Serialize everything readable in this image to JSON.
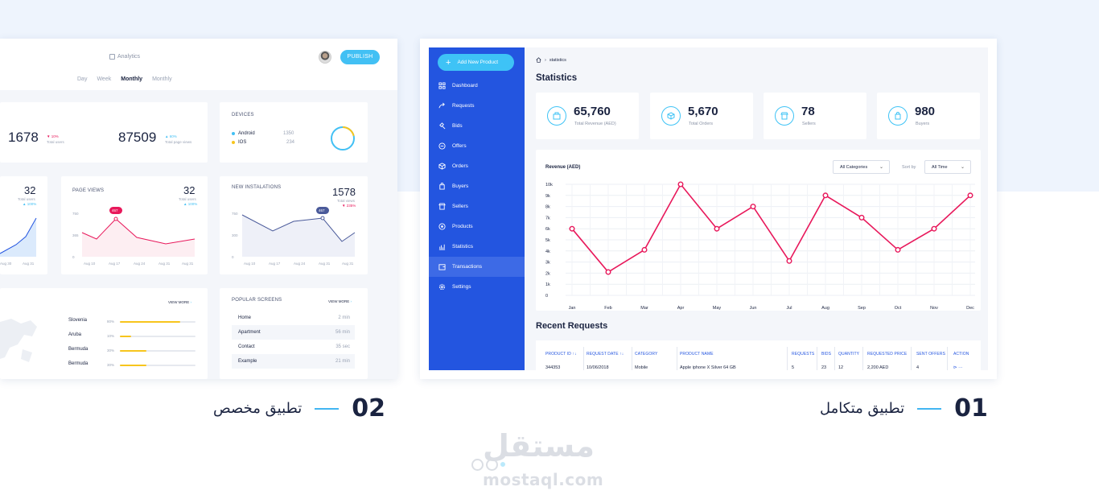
{
  "card2": {
    "analytics_label": "Analytics",
    "publish_label": "PUBLISH",
    "periods": [
      "Day",
      "Week",
      "Monthly",
      "Monthly"
    ],
    "active_period": "Monthly",
    "stats": {
      "users": {
        "value": "1678",
        "change": "▼ 10%",
        "label": "Total users"
      },
      "pageviews": {
        "value": "87509",
        "change": "▲ 60%",
        "label": "Total page views"
      }
    },
    "devices": {
      "title": "DEVICES",
      "items": [
        {
          "name": "Android",
          "value": "1350",
          "color": "#42c0f4"
        },
        {
          "name": "IOS",
          "value": "234",
          "color": "#f7c51d"
        }
      ]
    },
    "small_panel": {
      "value": "32",
      "label": "Total users",
      "change": "▲ 100%",
      "ticks": [
        "Aug 30",
        "Aug 31"
      ]
    },
    "page_views": {
      "title": "PAGE VIEWS",
      "value": "32",
      "label": "Total users",
      "change": "▲ 100%",
      "badge": "467",
      "y_ticks": [
        "750",
        "365",
        "0"
      ],
      "x_ticks": [
        "Aug 10",
        "Aug 17",
        "Aug 24",
        "Aug 31",
        "Aug 31"
      ]
    },
    "installations": {
      "title": "NEW INSTALATIONS",
      "value": "1578",
      "label": "Total views",
      "change": "▼ 235%",
      "badge": "467",
      "y_ticks": [
        "750",
        "300",
        "0"
      ],
      "x_ticks": [
        "Aug 10",
        "Aug 17",
        "Aug 24",
        "Aug 31",
        "Aug 31"
      ]
    },
    "countries": {
      "view_more": "VIEW MORE",
      "items": [
        {
          "name": "Slovenia",
          "pct": "80%",
          "fill": 0.8
        },
        {
          "name": "Aruba",
          "pct": "10%",
          "fill": 0.15
        },
        {
          "name": "Bermuda",
          "pct": "30%",
          "fill": 0.35
        },
        {
          "name": "Bermuda",
          "pct": "30%",
          "fill": 0.35
        }
      ]
    },
    "popular": {
      "title": "POPULAR SCREENS",
      "view_more": "VIEW MORE",
      "items": [
        {
          "name": "Home",
          "time": "2 min"
        },
        {
          "name": "Apartment",
          "time": "56 min"
        },
        {
          "name": "Contact",
          "time": "35 sec"
        },
        {
          "name": "Example",
          "time": "21 min"
        }
      ]
    }
  },
  "card1": {
    "add_button": "Add New Product",
    "nav": [
      {
        "label": "Dashboard",
        "icon": "grid-icon"
      },
      {
        "label": "Requests",
        "icon": "share-icon"
      },
      {
        "label": "Bids",
        "icon": "gavel-icon"
      },
      {
        "label": "Offers",
        "icon": "tag-icon"
      },
      {
        "label": "Orders",
        "icon": "box-icon"
      },
      {
        "label": "Buyers",
        "icon": "bag-icon"
      },
      {
        "label": "Sellers",
        "icon": "store-icon"
      },
      {
        "label": "Products",
        "icon": "products-icon"
      },
      {
        "label": "Statistics",
        "icon": "bar-chart-icon"
      },
      {
        "label": "Transactions",
        "icon": "wallet-icon"
      },
      {
        "label": "Settings",
        "icon": "gear-icon"
      }
    ],
    "active_nav": "Transactions",
    "breadcrumb": "statistics",
    "page_title": "Statistics",
    "kpis": [
      {
        "value": "65,760",
        "label": "Total Revenue (AED)",
        "icon": "money-icon"
      },
      {
        "value": "5,670",
        "label": "Total Orders",
        "icon": "box-icon"
      },
      {
        "value": "78",
        "label": "Sellers",
        "icon": "store-icon"
      },
      {
        "value": "980",
        "label": "Buyers",
        "icon": "bag-icon"
      }
    ],
    "filter_category": "All Categories",
    "sort_by_label": "Sort by",
    "sort_value": "All Time",
    "recent_title": "Recent Requests",
    "table": {
      "headers": [
        "PRODUCT ID ↑↓",
        "REQUEST DATE ↑↓",
        "CATEGORY",
        "PRODUCT NAME",
        "REQUESTS",
        "BIDS",
        "QUANTITY",
        "REQUESTED PRICE",
        "SENT OFFERS",
        "ACTION"
      ],
      "row": [
        "344353",
        "10/06/2018",
        "Mobile",
        "Apple iphone X Silver 64 GB",
        "5",
        "23",
        "12",
        "2,200 AED",
        "4",
        "⊳ ···"
      ]
    }
  },
  "chart_data": {
    "type": "line",
    "title": "Revenue (AED)",
    "categories": [
      "Jan",
      "Feb",
      "Mar",
      "Apr",
      "May",
      "Jun",
      "Jul",
      "Aug",
      "Sep",
      "Oct",
      "Nov",
      "Dec"
    ],
    "values": [
      6000,
      2100,
      4100,
      10000,
      6000,
      8000,
      3100,
      9000,
      7000,
      4100,
      6000,
      9000
    ],
    "y_ticks": [
      "10k",
      "9k",
      "8k",
      "7k",
      "6k",
      "5k",
      "4k",
      "3k",
      "2k",
      "1k",
      "0"
    ],
    "ylim": [
      0,
      10000
    ],
    "line_color": "#e8185b",
    "grid": true
  },
  "captions": {
    "one_num": "01",
    "one_text": "تطبيق متكامل",
    "two_num": "02",
    "two_text": "تطبيق مخصص"
  },
  "watermark": {
    "arabic": "مستقل",
    "latin": "mostaql.com"
  }
}
